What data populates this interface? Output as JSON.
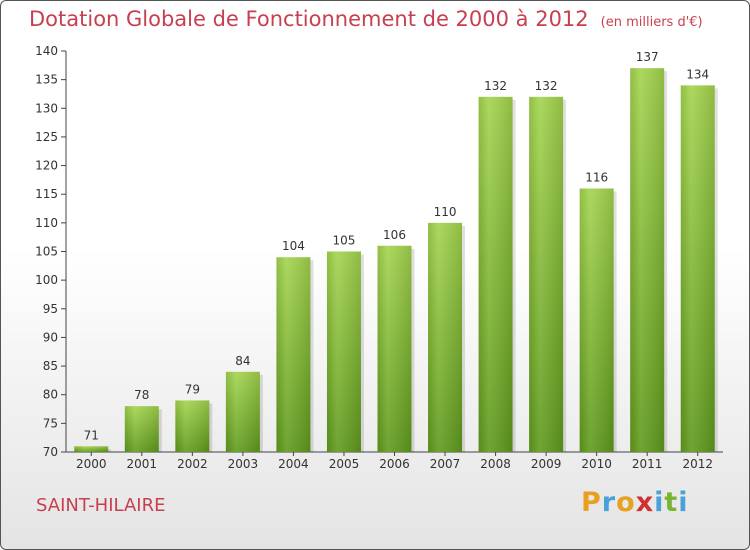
{
  "chart_data": {
    "type": "bar",
    "title": "Dotation Globale de Fonctionnement de 2000 à 2012",
    "subtitle": "(en milliers d'€)",
    "categories": [
      "2000",
      "2001",
      "2002",
      "2003",
      "2004",
      "2005",
      "2006",
      "2007",
      "2008",
      "2009",
      "2010",
      "2011",
      "2012"
    ],
    "values": [
      71,
      78,
      79,
      84,
      104,
      105,
      106,
      110,
      132,
      132,
      116,
      137,
      134
    ],
    "ylim": [
      70,
      140
    ],
    "yticks": [
      70,
      75,
      80,
      85,
      90,
      95,
      100,
      105,
      110,
      115,
      120,
      125,
      130,
      135,
      140
    ],
    "grid": false,
    "bar_color": "#7ab531"
  },
  "commune": "SAINT-HILAIRE",
  "logo": {
    "letters": [
      "P",
      "r",
      "o",
      "x",
      "i",
      "t",
      "i"
    ],
    "colors": [
      "#e8a020",
      "#4aa0d8",
      "#e8a020",
      "#d03030",
      "#4aa0d8",
      "#7ab531",
      "#4aa0d8"
    ]
  }
}
